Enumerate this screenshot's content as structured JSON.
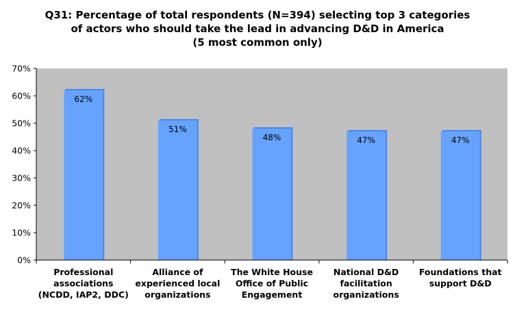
{
  "chart_data": {
    "type": "bar",
    "title_lines": [
      "Q31: Percentage of total respondents (N=394) selecting top 3 categories",
      "of actors who should take the lead in advancing D&D in America",
      "(5 most common only)"
    ],
    "categories": [
      [
        "Professional",
        "associations",
        "(NCDD, IAP2, DDC)"
      ],
      [
        "Alliance of",
        "experienced local",
        "organizations"
      ],
      [
        "The White House",
        "Office of Public",
        "Engagement"
      ],
      [
        "National D&D",
        "facilitation",
        "organizations"
      ],
      [
        "Foundations that",
        "support D&D"
      ]
    ],
    "values": [
      62,
      51,
      48,
      47,
      47
    ],
    "data_labels": [
      "62%",
      "51%",
      "48%",
      "47%",
      "47%"
    ],
    "y_ticks": [
      "0%",
      "10%",
      "20%",
      "30%",
      "40%",
      "50%",
      "60%",
      "70%"
    ],
    "ylim": [
      0,
      70
    ],
    "grid": false,
    "legend": "none",
    "colors": {
      "bar": "#66A3FF",
      "bar_shade": "#4A86E8",
      "plot_background": "#C0C0C0",
      "axis": "#000000"
    }
  }
}
